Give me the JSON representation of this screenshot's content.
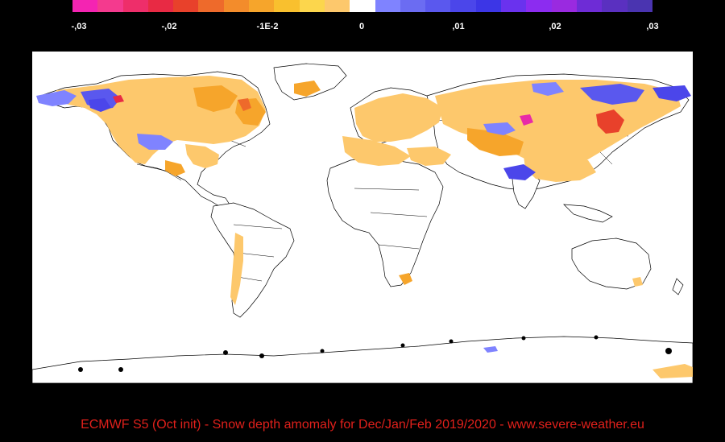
{
  "colorbar": {
    "colors": [
      "#f424b2",
      "#f43a8e",
      "#ee2e6a",
      "#e82a44",
      "#e8412b",
      "#ee6a2b",
      "#f38c2b",
      "#f6a52b",
      "#f9c02e",
      "#fcd64c",
      "#fdc86c",
      "#ffffff",
      "#7f83ff",
      "#6b6cf2",
      "#5a58ee",
      "#4b46ea",
      "#3c36e6",
      "#6a32ee",
      "#8c2cf0",
      "#9a2ae0",
      "#6e2cd6",
      "#5a30c0",
      "#4a34b0"
    ],
    "tick_labels": [
      ",03",
      ",02",
      "-1E-2",
      "0",
      ",01",
      ",02",
      ",03"
    ],
    "tick_labels_display": [
      "-,03",
      "-,02",
      "-1E-2",
      "0",
      ",01",
      ",02",
      ",03"
    ]
  },
  "map": {
    "colors": {
      "background": "#ffffff",
      "borders": "#000000",
      "negative_light": "#fdc86c",
      "negative_mid": "#f6a52b",
      "negative_strong": "#e8412b",
      "positive_light": "#7f83ff",
      "positive_strong": "#3c36e6",
      "extreme_positive": "#e82aa8"
    }
  },
  "caption": {
    "text": "ECMWF S5 (Oct init) -  Snow depth amomaly for Dec/Jan/Feb 2019/2020  -  www.severe-weather.eu"
  }
}
